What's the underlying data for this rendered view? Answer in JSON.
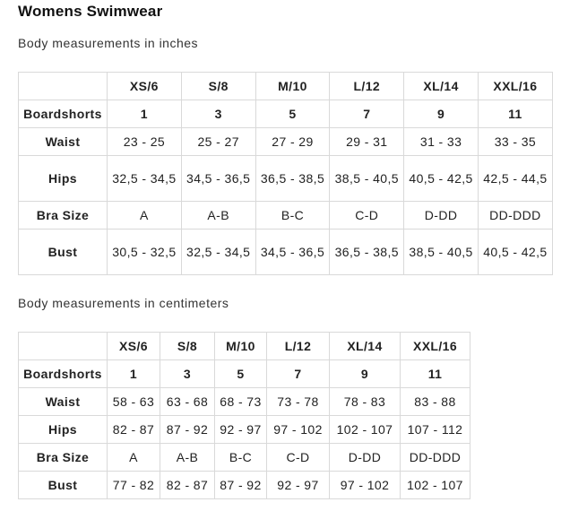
{
  "title": "Womens Swimwear",
  "inches": {
    "caption": "Body measurements in inches",
    "sizes": [
      "XS/6",
      "S/8",
      "M/10",
      "L/12",
      "XL/14",
      "XXL/16"
    ],
    "rows": [
      {
        "label": "Boardshorts",
        "values": [
          "1",
          "3",
          "5",
          "7",
          "9",
          "11"
        ]
      },
      {
        "label": "Waist",
        "values": [
          "23 - 25",
          "25 - 27",
          "27 - 29",
          "29 - 31",
          "31 - 33",
          "33 - 35"
        ]
      },
      {
        "label": "Hips",
        "values": [
          "32,5 - 34,5",
          "34,5 - 36,5",
          "36,5 - 38,5",
          "38,5 - 40,5",
          "40,5 - 42,5",
          "42,5 - 44,5"
        ]
      },
      {
        "label": "Bra Size",
        "values": [
          "A",
          "A-B",
          "B-C",
          "C-D",
          "D-DD",
          "DD-DDD"
        ]
      },
      {
        "label": "Bust",
        "values": [
          "30,5 - 32,5",
          "32,5 - 34,5",
          "34,5 - 36,5",
          "36,5 - 38,5",
          "38,5 - 40,5",
          "40,5 - 42,5"
        ]
      }
    ]
  },
  "centimeters": {
    "caption": "Body measurements in centimeters",
    "sizes": [
      "XS/6",
      "S/8",
      "M/10",
      "L/12",
      "XL/14",
      "XXL/16"
    ],
    "rows": [
      {
        "label": "Boardshorts",
        "values": [
          "1",
          "3",
          "5",
          "7",
          "9",
          "11"
        ]
      },
      {
        "label": "Waist",
        "values": [
          "58 - 63",
          "63 - 68",
          "68 - 73",
          "73 - 78",
          "78 - 83",
          "83 - 88"
        ]
      },
      {
        "label": "Hips",
        "values": [
          "82 - 87",
          "87 - 92",
          "92 - 97",
          "97 - 102",
          "102 - 107",
          "107 - 112"
        ]
      },
      {
        "label": "Bra Size",
        "values": [
          "A",
          "A-B",
          "B-C",
          "C-D",
          "D-DD",
          "DD-DDD"
        ]
      },
      {
        "label": "Bust",
        "values": [
          "77 - 82",
          "82 - 87",
          "87 - 92",
          "92 - 97",
          "97 - 102",
          "102 - 107"
        ]
      }
    ]
  }
}
